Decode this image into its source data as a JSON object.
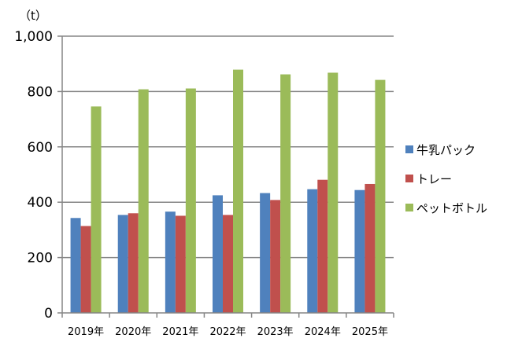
{
  "chart_data": {
    "type": "bar",
    "title": "",
    "xlabel": "",
    "ylabel": "",
    "unit": "（t）",
    "categories": [
      "2019年",
      "2020年",
      "2021年",
      "2022年",
      "2023年",
      "2024年",
      "2025年"
    ],
    "series": [
      {
        "name": "牛乳パック",
        "color": "#4f81bd",
        "values": [
          343,
          354,
          366,
          425,
          433,
          447,
          444
        ]
      },
      {
        "name": "トレー",
        "color": "#c0504d",
        "values": [
          314,
          360,
          351,
          354,
          408,
          481,
          466
        ]
      },
      {
        "name": "ペットボトル",
        "color": "#9bbb59",
        "values": [
          746,
          808,
          811,
          879,
          862,
          868,
          842
        ]
      }
    ],
    "ylim": [
      0,
      1000
    ],
    "yticks": [
      0,
      200,
      400,
      600,
      800,
      1000
    ],
    "ytick_labels": [
      "0",
      "200",
      "400",
      "600",
      "800",
      "1,000"
    ],
    "grid": true,
    "legend_position": "right"
  }
}
